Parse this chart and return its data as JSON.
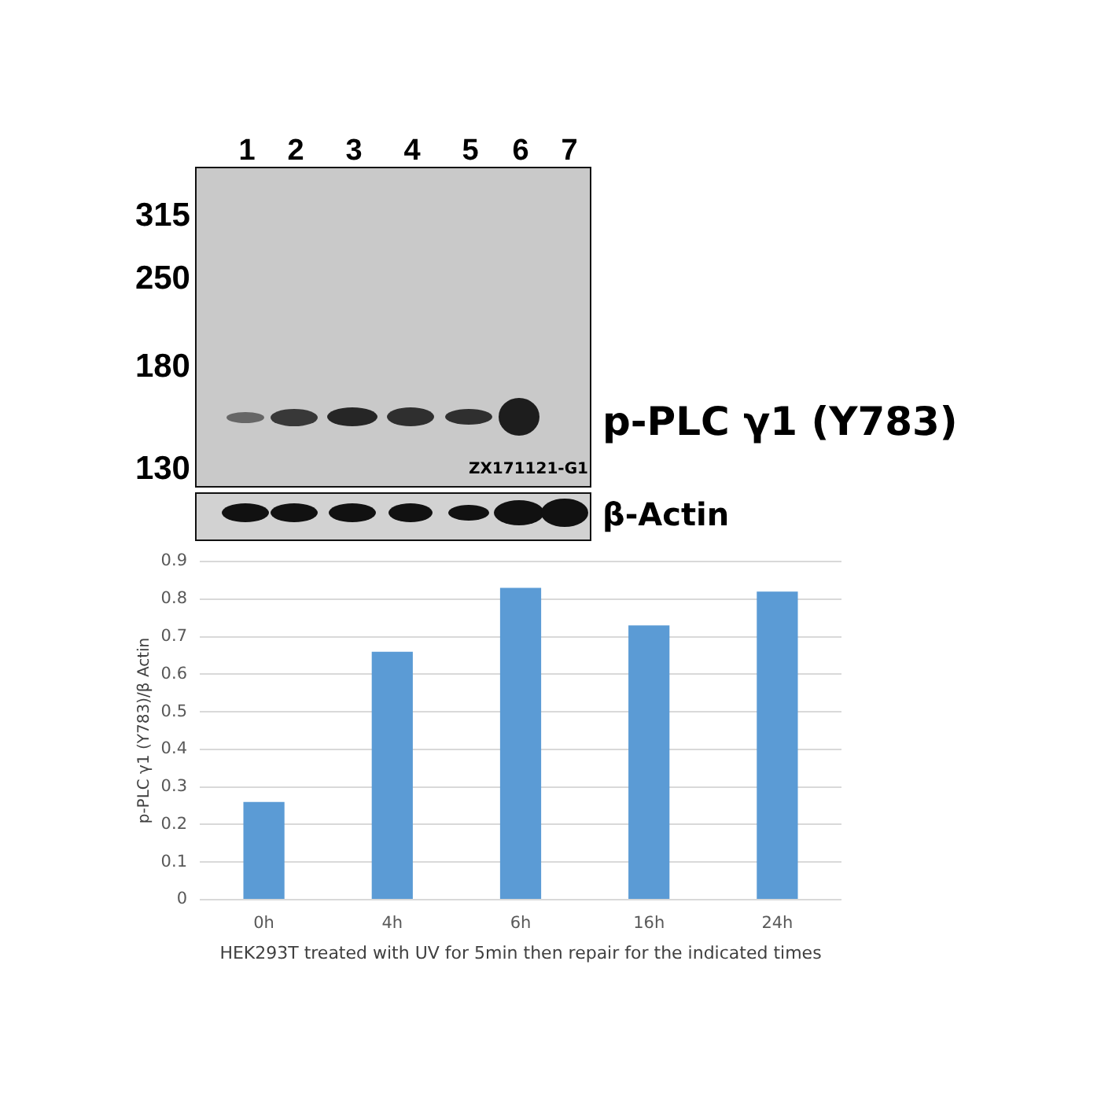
{
  "chart_data": {
    "type": "bar",
    "categories": [
      "0h",
      "4h",
      "6h",
      "16h",
      "24h"
    ],
    "values": [
      0.26,
      0.66,
      0.83,
      0.73,
      0.82
    ],
    "color": "#5b9bd5",
    "ylabel": "p-PLC γ1 (Y783)/β Actin",
    "xlabel": "HEK293T treated with UV for 5min then repair for the indicated times",
    "ylim": [
      0,
      0.9
    ],
    "yticks": [
      0,
      0.1,
      0.2,
      0.3,
      0.4,
      0.5,
      0.6,
      0.7,
      0.8,
      0.9
    ],
    "grid": "y",
    "legend": false,
    "annotations": [
      "1",
      "2",
      "3",
      "4",
      "5",
      "6",
      "7",
      "315",
      "250",
      "180",
      "130",
      "p-PLC γ1 (Y783)",
      "ZX171121-G1",
      "β-Actin"
    ]
  }
}
